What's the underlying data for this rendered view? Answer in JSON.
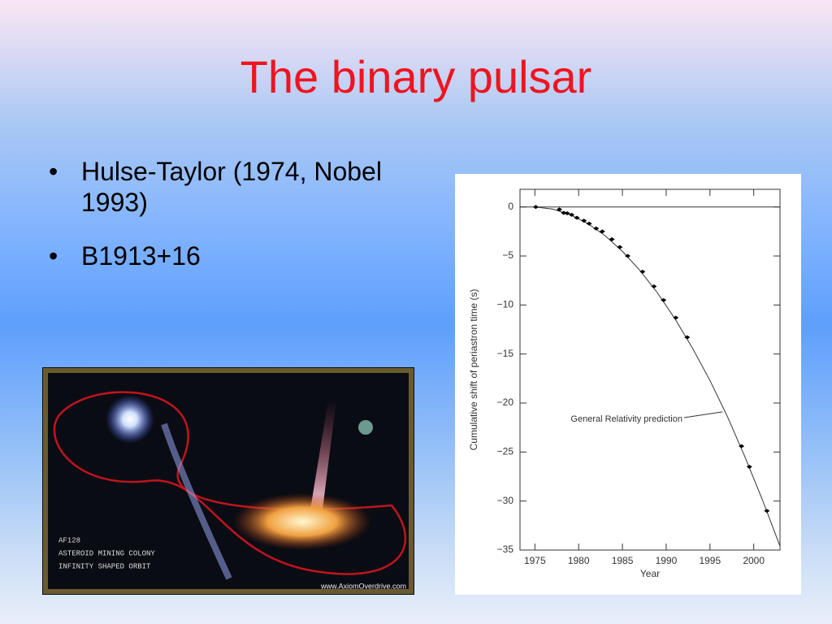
{
  "slide": {
    "title": "The binary pulsar",
    "bullets": [
      "Hulse-Taylor (1974, Nobel 1993)",
      "B1913+16"
    ]
  },
  "illustration": {
    "captions": [
      "AF128",
      "ASTEROID MINING COLONY",
      "INFINITY SHAPED ORBIT"
    ],
    "credit": "www.AxiomOverdrive.com"
  },
  "chart_data": {
    "type": "scatter",
    "x_label": "Year",
    "y_label": "Cumulative shift of periastron time (s)",
    "xlim": [
      1973.3,
      2003
    ],
    "ylim": [
      -35,
      1.8
    ],
    "xticks": [
      1975,
      1980,
      1985,
      1990,
      1995,
      2000
    ],
    "yticks": [
      0,
      {
        "value": -5,
        "label": "−5"
      },
      {
        "value": -10,
        "label": "−10"
      },
      {
        "value": -15,
        "label": "−15"
      },
      {
        "value": -20,
        "label": "−20"
      },
      {
        "value": -25,
        "label": "−25"
      },
      {
        "value": -30,
        "label": "−30"
      },
      {
        "value": -35,
        "label": "−35"
      }
    ],
    "hline": 0,
    "points": {
      "x": [
        1975.1,
        1977.8,
        1978.3,
        1978.7,
        1979.2,
        1979.8,
        1980.6,
        1981.2,
        1982.0,
        1982.7,
        1983.8,
        1984.7,
        1985.6,
        1987.3,
        1988.6,
        1989.7,
        1991.1,
        1992.4,
        1998.6,
        1999.5,
        2001.5
      ],
      "y": [
        0.0,
        -0.25,
        -0.6,
        -0.65,
        -0.8,
        -1.1,
        -1.4,
        -1.7,
        -2.2,
        -2.5,
        -3.3,
        -4.1,
        -5.0,
        -6.6,
        -8.1,
        -9.5,
        -11.3,
        -13.3,
        -24.4,
        -26.5,
        -31.0
      ]
    },
    "curve": {
      "name": "General Relativity prediction",
      "x": [
        1975,
        1977,
        1979,
        1981,
        1983,
        1985,
        1987,
        1989,
        1991,
        1993,
        1995,
        1997,
        1999,
        2001,
        2003
      ],
      "y": [
        0,
        -0.21,
        -0.77,
        -1.67,
        -2.92,
        -4.53,
        -6.47,
        -8.77,
        -11.4,
        -14.4,
        -17.7,
        -21.4,
        -25.5,
        -29.9,
        -34.6
      ]
    }
  }
}
